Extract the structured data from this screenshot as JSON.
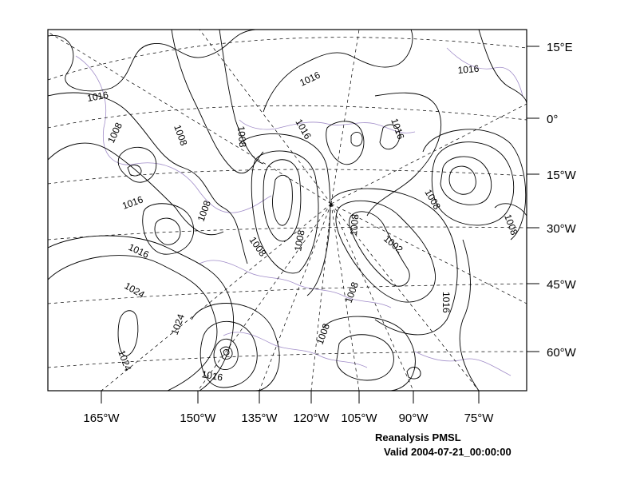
{
  "map": {
    "bottom_axis_labels": [
      "165°W",
      "150°W",
      "135°W",
      "120°W",
      "105°W",
      "90°W",
      "75°W"
    ],
    "right_axis_labels": [
      "15°E",
      "0°",
      "15°W",
      "30°W",
      "45°W",
      "60°W"
    ],
    "contour_labels": [
      "1016",
      "1016",
      "1016",
      "1008",
      "1008",
      "1008",
      "1016",
      "1016",
      "1008",
      "1008",
      "1008",
      "1008",
      "1016",
      "1008",
      "1008",
      "1002",
      "1008",
      "1016",
      "1024",
      "1024",
      "1024",
      "1008",
      "1016",
      "1016"
    ],
    "colors": {
      "contour": "#000000",
      "coastline": "#a08cc8",
      "graticule": "#000000",
      "frame": "#000000"
    }
  },
  "caption": {
    "title": "Reanalysis PMSL",
    "valid": "Valid 2004-07-21_00:00:00"
  }
}
